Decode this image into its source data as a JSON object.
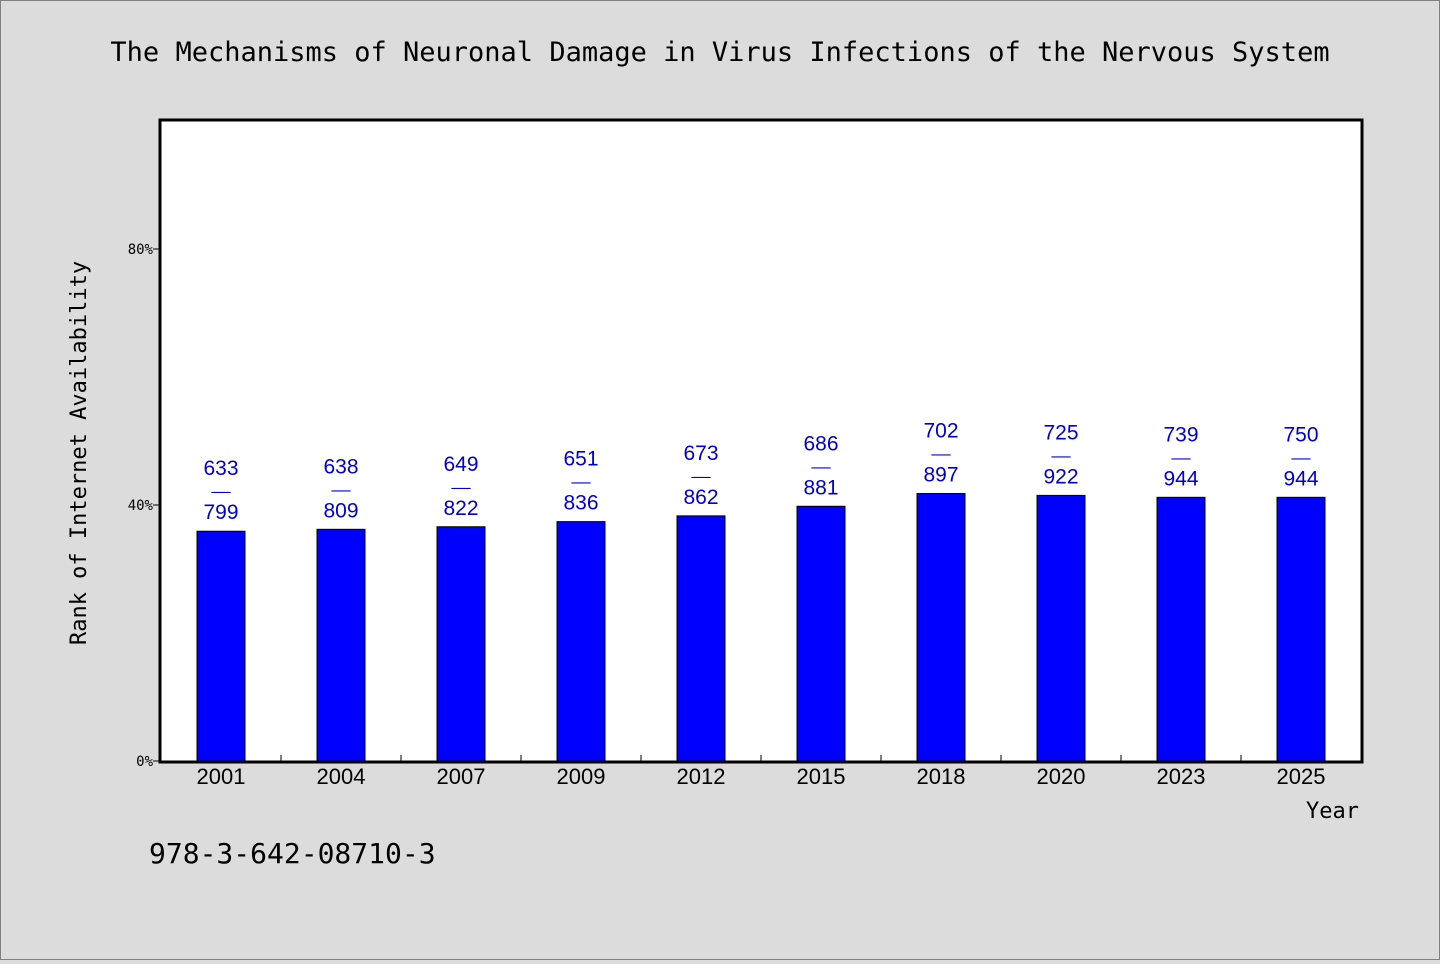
{
  "chart_data": {
    "type": "bar",
    "title": "The Mechanisms of Neuronal Damage in Virus Infections of the Nervous System",
    "xlabel": "Year",
    "ylabel": "Rank of Internet Availability",
    "ylim_percent": [
      0,
      100
    ],
    "y_ticks": [
      "0%",
      "40%",
      "80%"
    ],
    "y_tick_values": [
      0,
      40,
      80
    ],
    "categories": [
      "2001",
      "2004",
      "2007",
      "2009",
      "2012",
      "2015",
      "2018",
      "2020",
      "2023",
      "2025"
    ],
    "values": [
      35.9,
      36.2,
      36.6,
      37.4,
      38.3,
      39.8,
      41.8,
      41.5,
      41.2,
      41.2
    ],
    "labels": [
      {
        "top": "633",
        "bottom": "799"
      },
      {
        "top": "638",
        "bottom": "809"
      },
      {
        "top": "649",
        "bottom": "822"
      },
      {
        "top": "651",
        "bottom": "836"
      },
      {
        "top": "673",
        "bottom": "862"
      },
      {
        "top": "686",
        "bottom": "881"
      },
      {
        "top": "702",
        "bottom": "897"
      },
      {
        "top": "725",
        "bottom": "922"
      },
      {
        "top": "739",
        "bottom": "944"
      },
      {
        "top": "750",
        "bottom": "944"
      }
    ],
    "separator": "——",
    "grid": false,
    "legend": "none"
  },
  "footer": {
    "isbn": "978-3-642-08710-3"
  },
  "colors": {
    "bar": "#0000ff",
    "label": "#0000cc",
    "background": "#dcdcdc",
    "plot_bg": "#ffffff",
    "axis": "#000000"
  }
}
